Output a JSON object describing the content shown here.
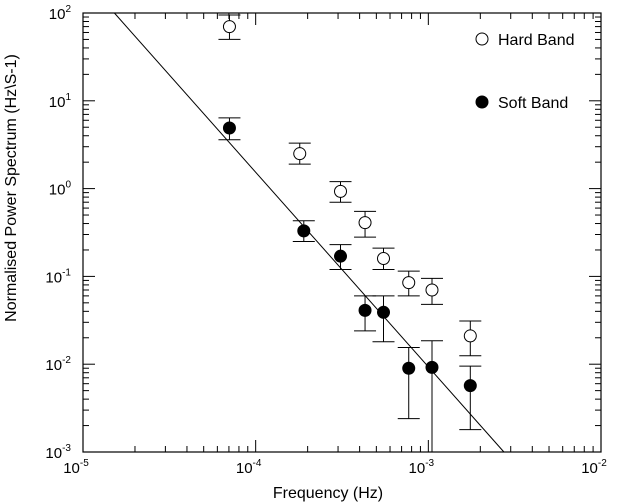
{
  "chart_data": {
    "type": "scatter",
    "title": "",
    "xlabel": "Frequency (Hz)",
    "ylabel": "Normalised Power Spectrum (Hz\\S-1)",
    "x_scale": "log",
    "y_scale": "log",
    "xlim": [
      1e-05,
      0.01
    ],
    "ylim": [
      0.001,
      100
    ],
    "grid": false,
    "legend_position": "top-right",
    "x_ticks": [
      {
        "base": "10",
        "exp": "-5",
        "value": 1e-05
      },
      {
        "base": "10",
        "exp": "-4",
        "value": 0.0001
      },
      {
        "base": "10",
        "exp": "-3",
        "value": 0.001
      },
      {
        "base": "10",
        "exp": "-2",
        "value": 0.01
      }
    ],
    "y_ticks": [
      {
        "base": "10",
        "exp": "-3",
        "value": 0.001
      },
      {
        "base": "10",
        "exp": "-2",
        "value": 0.01
      },
      {
        "base": "10",
        "exp": "-1",
        "value": 0.1
      },
      {
        "base": "10",
        "exp": "0",
        "value": 1
      },
      {
        "base": "10",
        "exp": "1",
        "value": 10
      },
      {
        "base": "10",
        "exp": "2",
        "value": 100
      }
    ],
    "series": [
      {
        "name": "Hard Band",
        "marker": "open-circle",
        "points": [
          {
            "x": 7.05e-05,
            "y": 70,
            "ylo": 50,
            "yhi": 95
          },
          {
            "x": 0.00018,
            "y": 2.5,
            "ylo": 1.9,
            "yhi": 3.3
          },
          {
            "x": 0.00031,
            "y": 0.93,
            "ylo": 0.7,
            "yhi": 1.2
          },
          {
            "x": 0.00043,
            "y": 0.41,
            "ylo": 0.28,
            "yhi": 0.55
          },
          {
            "x": 0.00055,
            "y": 0.16,
            "ylo": 0.12,
            "yhi": 0.21
          },
          {
            "x": 0.00077,
            "y": 0.085,
            "ylo": 0.06,
            "yhi": 0.115
          },
          {
            "x": 0.00105,
            "y": 0.07,
            "ylo": 0.048,
            "yhi": 0.095
          },
          {
            "x": 0.00175,
            "y": 0.021,
            "ylo": 0.0125,
            "yhi": 0.031
          }
        ]
      },
      {
        "name": "Soft Band",
        "marker": "filled-circle",
        "points": [
          {
            "x": 7.05e-05,
            "y": 4.9,
            "ylo": 3.6,
            "yhi": 6.4
          },
          {
            "x": 0.00019,
            "y": 0.33,
            "ylo": 0.25,
            "yhi": 0.43
          },
          {
            "x": 0.00031,
            "y": 0.17,
            "ylo": 0.12,
            "yhi": 0.23
          },
          {
            "x": 0.00043,
            "y": 0.041,
            "ylo": 0.024,
            "yhi": 0.06
          },
          {
            "x": 0.00055,
            "y": 0.039,
            "ylo": 0.018,
            "yhi": 0.06
          },
          {
            "x": 0.00077,
            "y": 0.009,
            "ylo": 0.0024,
            "yhi": 0.0155
          },
          {
            "x": 0.00105,
            "y": 0.0092,
            "ylo": 0.001,
            "yhi": 0.0185
          },
          {
            "x": 0.00175,
            "y": 0.0057,
            "ylo": 0.0018,
            "yhi": 0.0095
          }
        ]
      }
    ],
    "fit_line": {
      "x": [
        1.52e-05,
        0.00274
      ],
      "y": [
        100,
        0.001
      ]
    }
  }
}
